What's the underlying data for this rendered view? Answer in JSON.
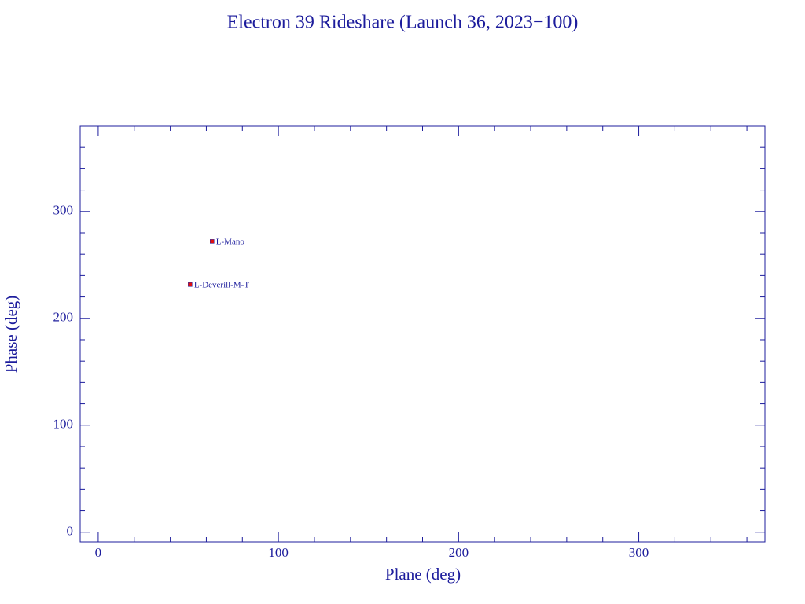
{
  "chart_data": {
    "type": "scatter",
    "title": "Electron 39 Rideshare (Launch 36, 2023−100)",
    "x_label": "Plane (deg)",
    "y_label": "Phase (deg)",
    "xlim": [
      -10,
      370
    ],
    "ylim": [
      -9,
      380
    ],
    "xticks": [
      0,
      100,
      200,
      300
    ],
    "yticks": [
      0,
      100,
      200,
      300
    ],
    "xticks_minor": [
      20,
      40,
      60,
      80,
      120,
      140,
      160,
      180,
      220,
      240,
      260,
      280,
      320,
      340,
      360
    ],
    "yticks_minor": [
      20,
      40,
      60,
      80,
      120,
      140,
      160,
      180,
      220,
      240,
      260,
      280,
      320,
      340,
      360
    ],
    "color": "#e01010",
    "labels": [
      "L-Mano",
      "L-Deverill-M-T"
    ],
    "x": [
      63.2,
      51.0
    ],
    "values": [
      272,
      231.6
    ]
  }
}
